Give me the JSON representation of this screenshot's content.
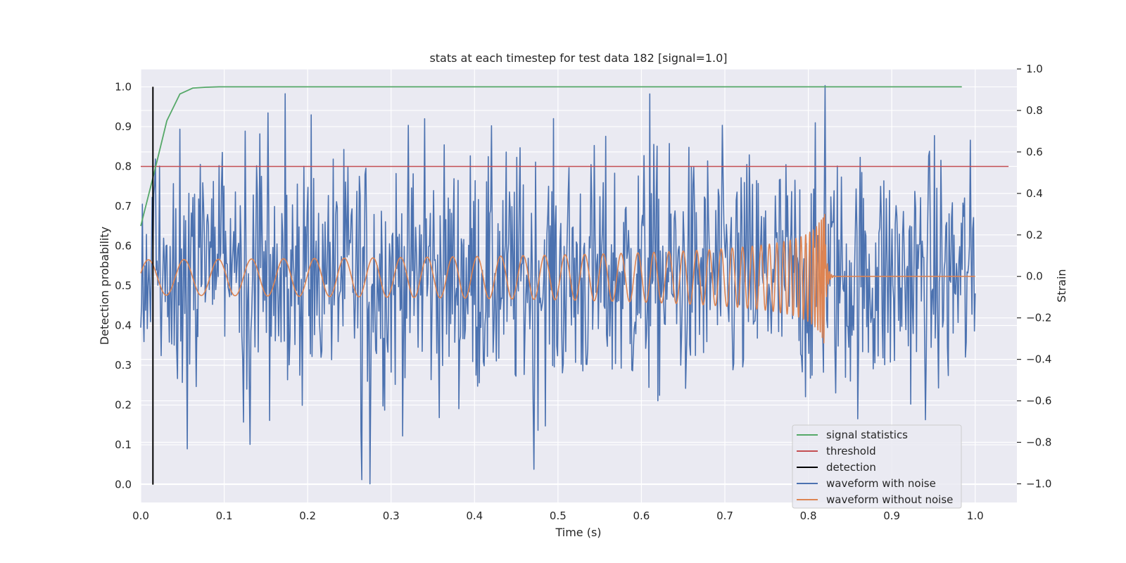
{
  "chart_data": {
    "type": "line",
    "title": "stats at each timestep for test data 182 [signal=1.0]",
    "xlabel": "Time (s)",
    "ylabel": "Detection probability",
    "y2label": "Strain",
    "xlim": [
      0.0,
      1.05
    ],
    "ylim": [
      -0.045,
      1.045
    ],
    "y2lim": [
      -1.09,
      1.0
    ],
    "xticks": [
      "0.0",
      "0.1",
      "0.2",
      "0.3",
      "0.4",
      "0.5",
      "0.6",
      "0.7",
      "0.8",
      "0.9",
      "1.0"
    ],
    "yticks": [
      "0.0",
      "0.1",
      "0.2",
      "0.3",
      "0.4",
      "0.5",
      "0.6",
      "0.7",
      "0.8",
      "0.9",
      "1.0"
    ],
    "y2ticks": [
      "−1.0",
      "−0.8",
      "−0.6",
      "−0.4",
      "−0.2",
      "0.0",
      "0.2",
      "0.4",
      "0.6",
      "0.8",
      "1.0"
    ],
    "grid": true,
    "legend_position": "bottom-right",
    "colors": {
      "signal_statistics": "#55a868",
      "threshold": "#c44e52",
      "detection": "#000000",
      "waveform_with_noise": "#4c72b0",
      "waveform_without_noise": "#dd8452",
      "plot_background": "#eaeaf2",
      "grid": "#ffffff"
    },
    "series": [
      {
        "name": "signal statistics",
        "axis": "left",
        "x": [
          0.0,
          0.0156,
          0.0313,
          0.0469,
          0.0625,
          0.0781,
          0.0938,
          0.1094,
          0.125,
          0.2,
          0.3,
          0.4,
          0.5,
          0.6,
          0.7,
          0.8,
          0.9,
          0.984
        ],
        "y": [
          0.65,
          0.78,
          0.915,
          0.982,
          0.997,
          0.999,
          1.0,
          1.0,
          1.0,
          1.0,
          1.0,
          1.0,
          1.0,
          1.0,
          1.0,
          1.0,
          1.0,
          1.0
        ]
      },
      {
        "name": "threshold",
        "axis": "left",
        "x": [
          0.0,
          1.04
        ],
        "y": [
          0.8,
          0.8
        ]
      },
      {
        "name": "detection",
        "axis": "left",
        "x": [
          0.0146,
          0.0146
        ],
        "y": [
          0.0,
          1.0
        ]
      },
      {
        "name": "waveform with noise",
        "axis": "right",
        "generated": "noise",
        "x_range": [
          0.0,
          1.0
        ],
        "amplitude": 0.3,
        "notable_points": [
          {
            "x": 0.275,
            "y": -1.0
          },
          {
            "x": 0.265,
            "y": -0.98
          },
          {
            "x": 0.82,
            "y": 0.92
          },
          {
            "x": 0.61,
            "y": 0.88
          },
          {
            "x": 0.34,
            "y": 0.76
          },
          {
            "x": 0.131,
            "y": -0.81
          },
          {
            "x": 0.471,
            "y": -0.93
          }
        ]
      },
      {
        "name": "waveform without noise",
        "axis": "right",
        "generated": "chirp",
        "x_range": [
          0.0,
          1.0
        ],
        "merger_time": 0.82,
        "amplitude_start": 0.085,
        "amplitude_peak": 0.33
      }
    ]
  }
}
